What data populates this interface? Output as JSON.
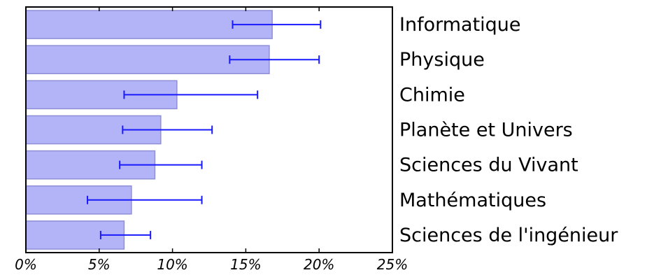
{
  "chart_data": {
    "type": "bar",
    "orientation": "horizontal",
    "categories": [
      "Informatique",
      "Physique",
      "Chimie",
      "Planète et Univers",
      "Sciences du Vivant",
      "Mathématiques",
      "Sciences de l'ingénieur"
    ],
    "values": [
      16.8,
      16.6,
      10.3,
      9.2,
      8.8,
      7.2,
      6.7
    ],
    "error_low": [
      14.1,
      13.9,
      6.7,
      6.6,
      6.4,
      4.2,
      5.1
    ],
    "error_high": [
      20.1,
      20.0,
      15.8,
      12.7,
      12.0,
      12.0,
      8.5
    ],
    "xlim": [
      0,
      25
    ],
    "x_ticks": [
      "0%",
      "5%",
      "10%",
      "15%",
      "20%",
      "25%"
    ],
    "x_tick_values": [
      0,
      5,
      10,
      15,
      20,
      25
    ],
    "labels_position": "right",
    "grid": false,
    "colors": {
      "bar_fill": "#b3b3f7",
      "bar_stroke": "#8f8fd8",
      "error_bar": "#1a1aff",
      "axis": "#000000"
    }
  }
}
